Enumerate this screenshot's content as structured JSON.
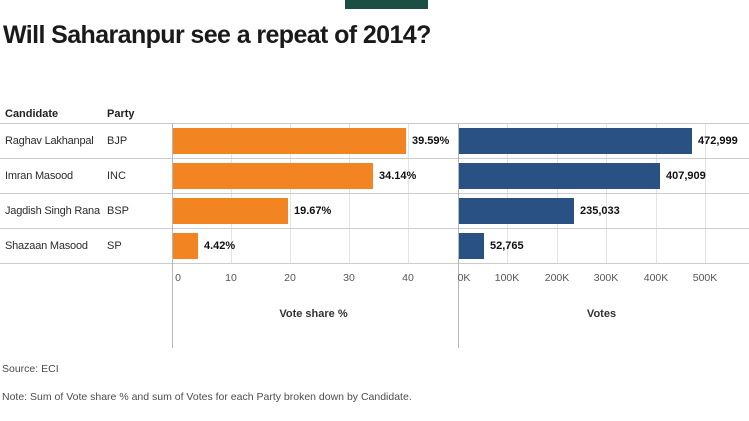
{
  "header": {
    "title": "Will Saharanpur see a repeat of 2014?"
  },
  "table": {
    "candidate_header": "Candidate",
    "party_header": "Party"
  },
  "chart_data": {
    "type": "bar",
    "orientation": "horizontal",
    "title": "Will Saharanpur see a repeat of 2014?",
    "categories": [
      "Raghav Lakhanpal",
      "Imran Masood",
      "Jagdish Singh Rana",
      "Shazaan Masood"
    ],
    "parties": [
      "BJP",
      "INC",
      "BSP",
      "SP"
    ],
    "series": [
      {
        "name": "Vote share %",
        "values": [
          39.59,
          34.14,
          19.67,
          4.42
        ],
        "labels": [
          "39.59%",
          "34.14%",
          "19.67%",
          "4.42%"
        ],
        "color": "#f28522",
        "axis_ticks": [
          "0",
          "10",
          "20",
          "30",
          "40"
        ],
        "axis_title": "Vote share %",
        "xlim": [
          0,
          48
        ],
        "grid": true,
        "legend": "none"
      },
      {
        "name": "Votes",
        "values": [
          472999,
          407909,
          235033,
          52765
        ],
        "labels": [
          "472,999",
          "407,909",
          "235,033",
          "52,765"
        ],
        "color": "#2a5183",
        "axis_ticks": [
          "0K",
          "100K",
          "200K",
          "300K",
          "400K",
          "500K"
        ],
        "axis_title": "Votes",
        "xlim": [
          0,
          590000
        ],
        "grid": true,
        "legend": "none"
      }
    ]
  },
  "footer": {
    "source": "Source: ECI",
    "note": "Note: Sum of Vote share % and sum of Votes for each Party broken down by Candidate."
  },
  "colors": {
    "vote_share_bar": "#f28522",
    "votes_bar": "#2a5183",
    "accent_bar": "#1b4f44"
  }
}
